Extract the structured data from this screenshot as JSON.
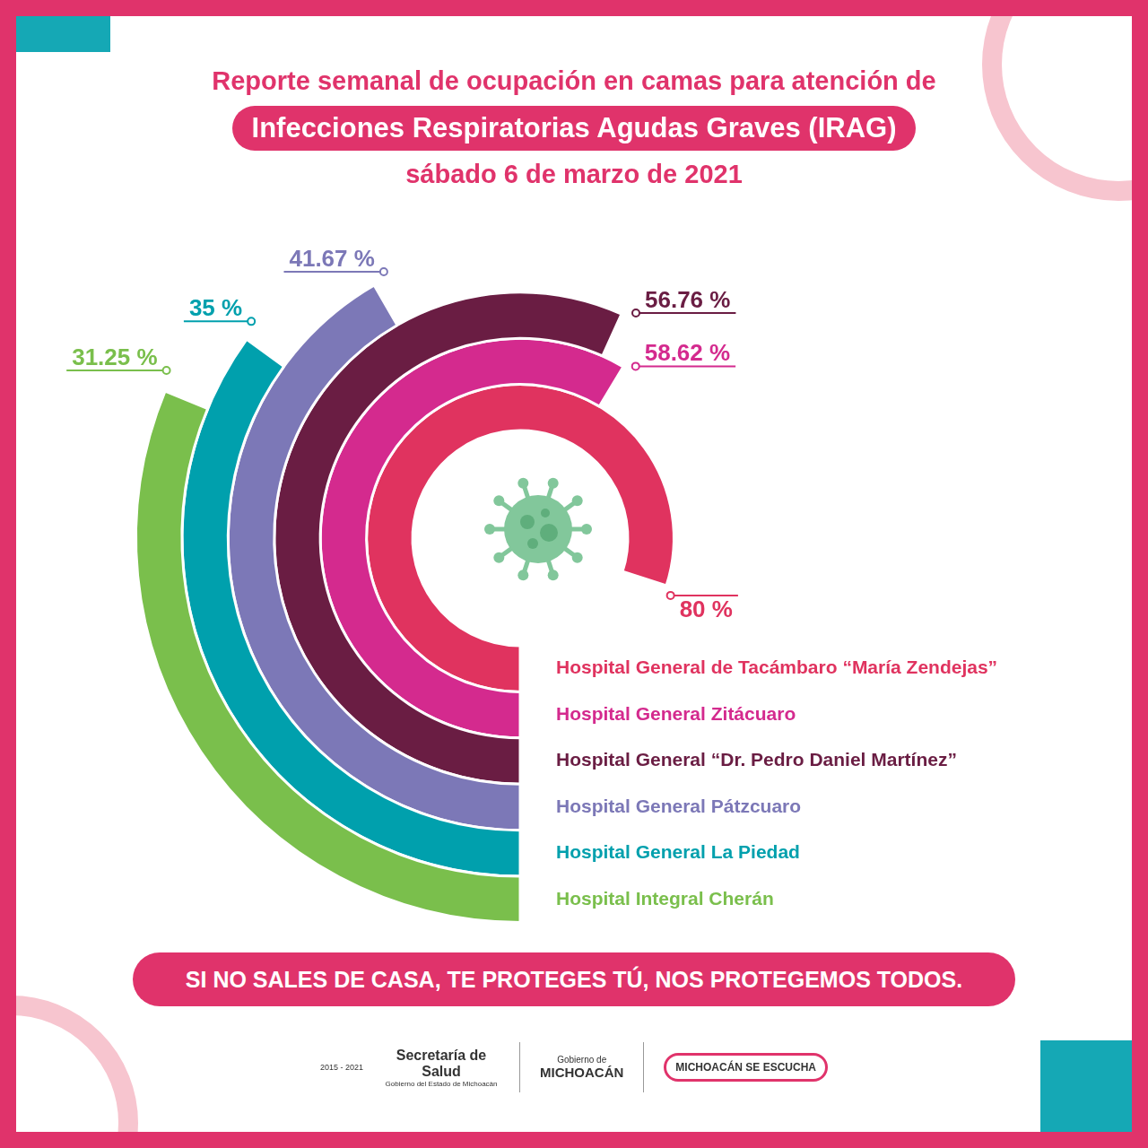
{
  "chart_data": {
    "type": "radial_bar",
    "title": "Reporte semanal de ocupación en camas para atención de",
    "subtitle": "Infecciones Respiratorias Agudas Graves (IRAG)",
    "date": "sábado 6 de marzo de 2021",
    "categories": [
      "Hospital General de Tacámbaro “María Zendejas”",
      "Hospital General Zitácuaro",
      "Hospital General “Dr. Pedro Daniel Martínez”",
      "Hospital General Pátzcuaro",
      "Hospital General La Piedad",
      "Hospital Integral Cherán"
    ],
    "values": [
      80,
      58.62,
      56.76,
      41.67,
      35,
      31.25
    ],
    "value_labels": [
      "80 %",
      "58.62 %",
      "56.76 %",
      "41.67 %",
      "35 %",
      "31.25 %"
    ],
    "colors": [
      "#e0335f",
      "#d42a8e",
      "#6a1d43",
      "#7c78b7",
      "#00a0ad",
      "#7abf4c"
    ],
    "ylim": [
      0,
      100
    ],
    "data_labels": true,
    "tick_labels": false,
    "footer": "SI NO SALES DE CASA, TE PROTEGES TÚ, NOS PROTEGEMOS TODOS.",
    "logos": [
      "2015 - 2021",
      "Secretaría de Salud",
      "Gobierno del Estado de Michoacán",
      "Gobierno de",
      "MICHOACÁN",
      "MICHOACÁN SE ESCUCHA"
    ]
  }
}
